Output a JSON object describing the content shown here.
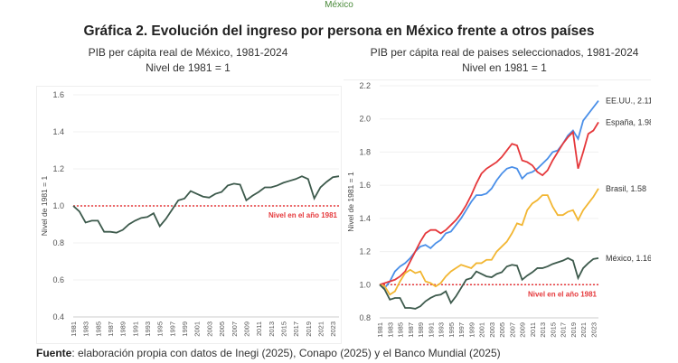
{
  "header_partial": "México",
  "title": "Gráfica 2. Evolución del ingreso por persona en México frente a otros países",
  "footer": {
    "label": "Fuente",
    "text": ": elaboración propia con datos de Inegi (2025), Conapo (2025) y el Banco Mundial (2025)"
  },
  "chart_data": [
    {
      "type": "line",
      "title": "PIB per cápita real de México, 1981-2024",
      "subtitle": "Nivel de 1981 = 1",
      "ylabel": "Nivel de 1981 = 1",
      "ylim": [
        0.4,
        1.6
      ],
      "yticks": [
        "0.4",
        "0.6",
        "0.8",
        "1.0",
        "1.2",
        "1.4",
        "1.6"
      ],
      "x": [
        1981,
        1982,
        1983,
        1984,
        1985,
        1986,
        1987,
        1988,
        1989,
        1990,
        1991,
        1992,
        1993,
        1994,
        1995,
        1996,
        1997,
        1998,
        1999,
        2000,
        2001,
        2002,
        2003,
        2004,
        2005,
        2006,
        2007,
        2008,
        2009,
        2010,
        2011,
        2012,
        2013,
        2014,
        2015,
        2016,
        2017,
        2018,
        2019,
        2020,
        2021,
        2022,
        2023,
        2024
      ],
      "xtick_labels": [
        "1981",
        "1983",
        "1985",
        "1987",
        "1989",
        "1991",
        "1993",
        "1995",
        "1997",
        "1999",
        "2001",
        "2003",
        "2005",
        "2007",
        "2009",
        "2011",
        "2013",
        "2015",
        "2017",
        "2019",
        "2021",
        "2023"
      ],
      "grid": true,
      "reference_line": {
        "value": 1.0,
        "label": "Nivel en el año 1981",
        "color": "#e5383b"
      },
      "series": [
        {
          "color": "#3d5a4c",
          "values": [
            1.0,
            0.97,
            0.91,
            0.92,
            0.92,
            0.86,
            0.86,
            0.855,
            0.87,
            0.9,
            0.92,
            0.935,
            0.94,
            0.96,
            0.89,
            0.93,
            0.98,
            1.03,
            1.04,
            1.08,
            1.065,
            1.05,
            1.045,
            1.065,
            1.075,
            1.11,
            1.12,
            1.115,
            1.03,
            1.055,
            1.075,
            1.1,
            1.1,
            1.11,
            1.125,
            1.135,
            1.145,
            1.16,
            1.145,
            1.04,
            1.1,
            1.13,
            1.155,
            1.16
          ]
        }
      ]
    },
    {
      "type": "line",
      "title": "PIB per cápita real de paises seleccionados, 1981-2024",
      "subtitle": "Nivel en 1981 = 1",
      "ylabel": "Nivel de 1981 = 1",
      "ylim": [
        0.8,
        2.2
      ],
      "yticks": [
        "0.8",
        "1.0",
        "1.2",
        "1.4",
        "1.6",
        "1.8",
        "2.0",
        "2.2"
      ],
      "x": [
        1981,
        1982,
        1983,
        1984,
        1985,
        1986,
        1987,
        1988,
        1989,
        1990,
        1991,
        1992,
        1993,
        1994,
        1995,
        1996,
        1997,
        1998,
        1999,
        2000,
        2001,
        2002,
        2003,
        2004,
        2005,
        2006,
        2007,
        2008,
        2009,
        2010,
        2011,
        2012,
        2013,
        2014,
        2015,
        2016,
        2017,
        2018,
        2019,
        2020,
        2021,
        2022,
        2023,
        2024
      ],
      "xtick_labels": [
        "1981",
        "1983",
        "1985",
        "1987",
        "1989",
        "1991",
        "1993",
        "1995",
        "1997",
        "1999",
        "2001",
        "2003",
        "2005",
        "2007",
        "2009",
        "2011",
        "2013",
        "2015",
        "2017",
        "2019",
        "2021",
        "2023"
      ],
      "grid": true,
      "reference_line": {
        "value": 1.0,
        "label": "Nivel en el año 1981",
        "color": "#e5383b"
      },
      "series": [
        {
          "name": "EE.UU., 2.11",
          "color": "#4a8fe8",
          "values": [
            1.0,
            0.98,
            1.02,
            1.08,
            1.11,
            1.13,
            1.16,
            1.2,
            1.23,
            1.24,
            1.22,
            1.25,
            1.27,
            1.31,
            1.32,
            1.36,
            1.4,
            1.45,
            1.5,
            1.54,
            1.54,
            1.55,
            1.58,
            1.63,
            1.67,
            1.7,
            1.71,
            1.7,
            1.64,
            1.67,
            1.68,
            1.7,
            1.73,
            1.76,
            1.8,
            1.81,
            1.85,
            1.9,
            1.93,
            1.88,
            1.99,
            2.03,
            2.07,
            2.11
          ]
        },
        {
          "name": "España, 1.98",
          "color": "#e5383b",
          "values": [
            1.0,
            1.01,
            1.02,
            1.03,
            1.05,
            1.08,
            1.14,
            1.2,
            1.26,
            1.31,
            1.33,
            1.33,
            1.31,
            1.33,
            1.36,
            1.39,
            1.43,
            1.48,
            1.54,
            1.61,
            1.67,
            1.7,
            1.72,
            1.74,
            1.77,
            1.81,
            1.85,
            1.84,
            1.75,
            1.74,
            1.72,
            1.68,
            1.66,
            1.69,
            1.75,
            1.8,
            1.85,
            1.89,
            1.92,
            1.7,
            1.8,
            1.91,
            1.93,
            1.98
          ]
        },
        {
          "name": "Brasil, 1.58",
          "color": "#f2b632",
          "values": [
            1.0,
            0.99,
            0.94,
            0.96,
            1.02,
            1.07,
            1.09,
            1.07,
            1.08,
            1.02,
            1.01,
            0.99,
            1.01,
            1.05,
            1.08,
            1.1,
            1.12,
            1.11,
            1.1,
            1.13,
            1.13,
            1.15,
            1.15,
            1.2,
            1.23,
            1.26,
            1.31,
            1.37,
            1.36,
            1.45,
            1.49,
            1.51,
            1.54,
            1.54,
            1.47,
            1.42,
            1.42,
            1.44,
            1.45,
            1.39,
            1.45,
            1.49,
            1.53,
            1.58
          ]
        },
        {
          "name": "México, 1.16",
          "color": "#3d5a4c",
          "values": [
            1.0,
            0.97,
            0.91,
            0.92,
            0.92,
            0.86,
            0.86,
            0.855,
            0.87,
            0.9,
            0.92,
            0.935,
            0.94,
            0.96,
            0.89,
            0.93,
            0.98,
            1.03,
            1.04,
            1.08,
            1.065,
            1.05,
            1.045,
            1.065,
            1.075,
            1.11,
            1.12,
            1.115,
            1.03,
            1.055,
            1.075,
            1.1,
            1.1,
            1.11,
            1.125,
            1.135,
            1.145,
            1.16,
            1.145,
            1.04,
            1.1,
            1.13,
            1.155,
            1.16
          ]
        }
      ]
    }
  ]
}
